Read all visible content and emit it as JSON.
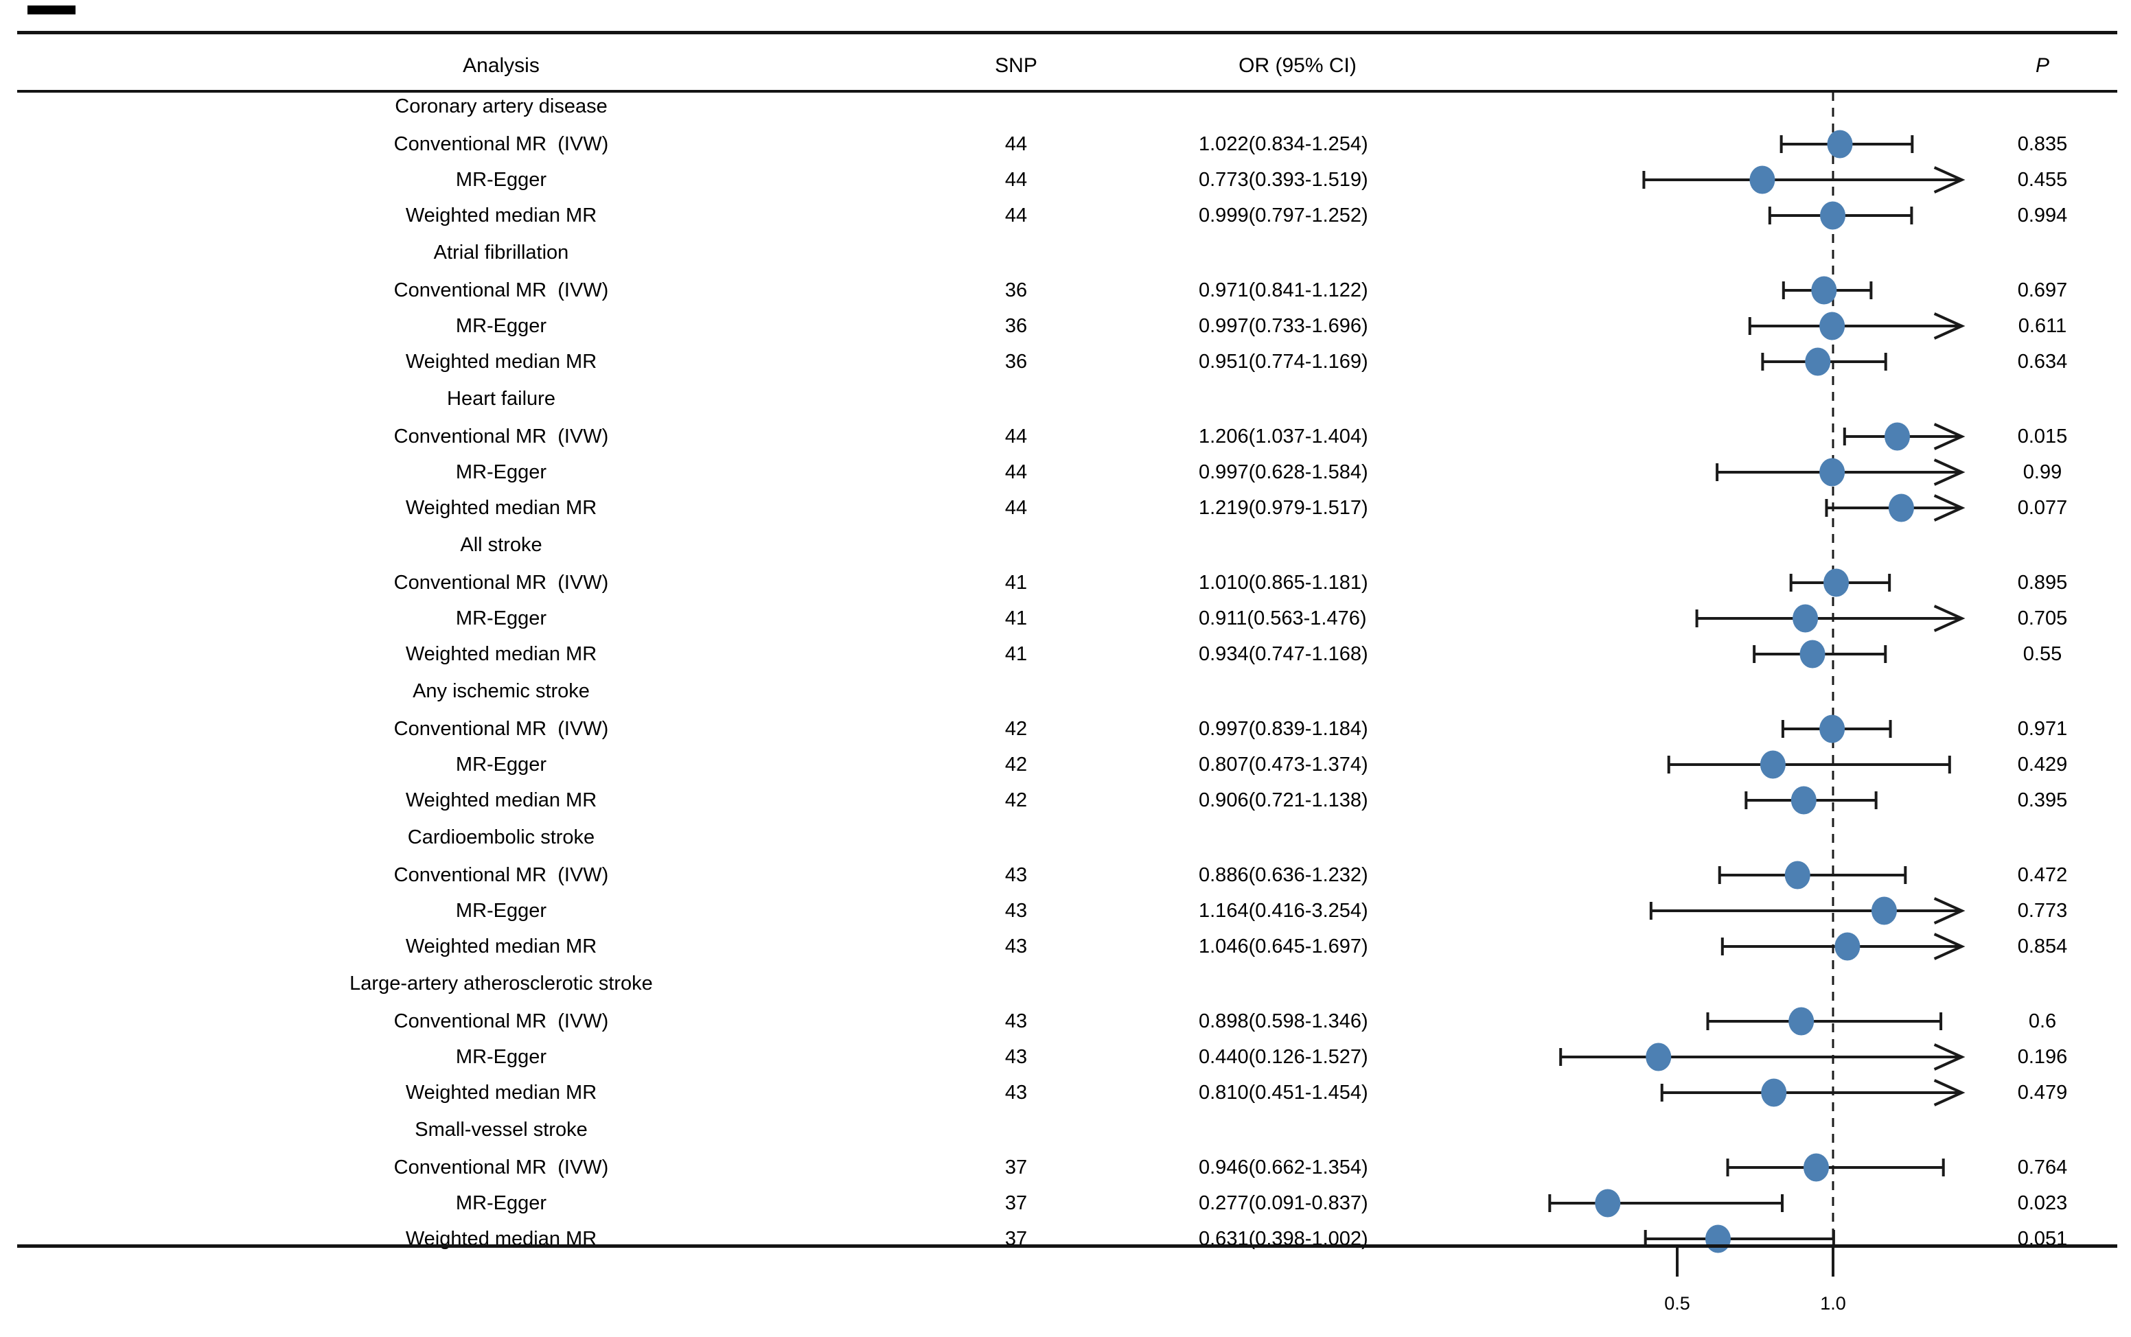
{
  "header": {
    "analysis": "Analysis",
    "snp": "SNP",
    "or": "OR (95% CI)",
    "p": "P"
  },
  "colors": {
    "marker": "#4d80b3",
    "line": "#1a1a1a"
  },
  "chart_data": {
    "type": "forest",
    "x_axis": {
      "ticks": [
        {
          "value": 0.5,
          "label": "0.5"
        },
        {
          "value": 1.0,
          "label": "1.0"
        }
      ],
      "reference_line": 1.0,
      "clip_upper": 1.4,
      "scale": "linear"
    },
    "legend": "none",
    "groups": [
      {
        "label": "Coronary artery disease",
        "rows": [
          {
            "analysis": "Conventional MR  (IVW)",
            "snp": "44",
            "or_ci": "1.022(0.834-1.254)",
            "or": 1.022,
            "lo": 0.834,
            "hi": 1.254,
            "p": "0.835"
          },
          {
            "analysis": "MR-Egger",
            "snp": "44",
            "or_ci": "0.773(0.393-1.519)",
            "or": 0.773,
            "lo": 0.393,
            "hi": 1.519,
            "p": "0.455"
          },
          {
            "analysis": "Weighted median MR",
            "snp": "44",
            "or_ci": "0.999(0.797-1.252)",
            "or": 0.999,
            "lo": 0.797,
            "hi": 1.252,
            "p": "0.994"
          }
        ]
      },
      {
        "label": "Atrial fibrillation",
        "rows": [
          {
            "analysis": "Conventional MR  (IVW)",
            "snp": "36",
            "or_ci": "0.971(0.841-1.122)",
            "or": 0.971,
            "lo": 0.841,
            "hi": 1.122,
            "p": "0.697"
          },
          {
            "analysis": "MR-Egger",
            "snp": "36",
            "or_ci": "0.997(0.733-1.696)",
            "or": 0.997,
            "lo": 0.733,
            "hi": 1.696,
            "p": "0.611"
          },
          {
            "analysis": "Weighted median MR",
            "snp": "36",
            "or_ci": "0.951(0.774-1.169)",
            "or": 0.951,
            "lo": 0.774,
            "hi": 1.169,
            "p": "0.634"
          }
        ]
      },
      {
        "label": "Heart failure",
        "rows": [
          {
            "analysis": "Conventional MR  (IVW)",
            "snp": "44",
            "or_ci": "1.206(1.037-1.404)",
            "or": 1.206,
            "lo": 1.037,
            "hi": 1.404,
            "p": "0.015"
          },
          {
            "analysis": "MR-Egger",
            "snp": "44",
            "or_ci": "0.997(0.628-1.584)",
            "or": 0.997,
            "lo": 0.628,
            "hi": 1.584,
            "p": "0.99"
          },
          {
            "analysis": "Weighted median MR",
            "snp": "44",
            "or_ci": "1.219(0.979-1.517)",
            "or": 1.219,
            "lo": 0.979,
            "hi": 1.517,
            "p": "0.077"
          }
        ]
      },
      {
        "label": "All stroke",
        "rows": [
          {
            "analysis": "Conventional MR  (IVW)",
            "snp": "41",
            "or_ci": "1.010(0.865-1.181)",
            "or": 1.01,
            "lo": 0.865,
            "hi": 1.181,
            "p": "0.895"
          },
          {
            "analysis": "MR-Egger",
            "snp": "41",
            "or_ci": "0.911(0.563-1.476)",
            "or": 0.911,
            "lo": 0.563,
            "hi": 1.476,
            "p": "0.705"
          },
          {
            "analysis": "Weighted median MR",
            "snp": "41",
            "or_ci": "0.934(0.747-1.168)",
            "or": 0.934,
            "lo": 0.747,
            "hi": 1.168,
            "p": "0.55"
          }
        ]
      },
      {
        "label": "Any ischemic stroke",
        "rows": [
          {
            "analysis": "Conventional MR  (IVW)",
            "snp": "42",
            "or_ci": "0.997(0.839-1.184)",
            "or": 0.997,
            "lo": 0.839,
            "hi": 1.184,
            "p": "0.971"
          },
          {
            "analysis": "MR-Egger",
            "snp": "42",
            "or_ci": "0.807(0.473-1.374)",
            "or": 0.807,
            "lo": 0.473,
            "hi": 1.374,
            "p": "0.429"
          },
          {
            "analysis": "Weighted median MR",
            "snp": "42",
            "or_ci": "0.906(0.721-1.138)",
            "or": 0.906,
            "lo": 0.721,
            "hi": 1.138,
            "p": "0.395"
          }
        ]
      },
      {
        "label": "Cardioembolic stroke",
        "rows": [
          {
            "analysis": "Conventional MR  (IVW)",
            "snp": "43",
            "or_ci": "0.886(0.636-1.232)",
            "or": 0.886,
            "lo": 0.636,
            "hi": 1.232,
            "p": "0.472"
          },
          {
            "analysis": "MR-Egger",
            "snp": "43",
            "or_ci": "1.164(0.416-3.254)",
            "or": 1.164,
            "lo": 0.416,
            "hi": 3.254,
            "p": "0.773"
          },
          {
            "analysis": "Weighted median MR",
            "snp": "43",
            "or_ci": "1.046(0.645-1.697)",
            "or": 1.046,
            "lo": 0.645,
            "hi": 1.697,
            "p": "0.854"
          }
        ]
      },
      {
        "label": "Large-artery atherosclerotic stroke",
        "rows": [
          {
            "analysis": "Conventional MR  (IVW)",
            "snp": "43",
            "or_ci": "0.898(0.598-1.346)",
            "or": 0.898,
            "lo": 0.598,
            "hi": 1.346,
            "p": "0.6"
          },
          {
            "analysis": "MR-Egger",
            "snp": "43",
            "or_ci": "0.440(0.126-1.527)",
            "or": 0.44,
            "lo": 0.126,
            "hi": 1.527,
            "p": "0.196"
          },
          {
            "analysis": "Weighted median MR",
            "snp": "43",
            "or_ci": "0.810(0.451-1.454)",
            "or": 0.81,
            "lo": 0.451,
            "hi": 1.454,
            "p": "0.479"
          }
        ]
      },
      {
        "label": "Small-vessel stroke",
        "rows": [
          {
            "analysis": "Conventional MR  (IVW)",
            "snp": "37",
            "or_ci": "0.946(0.662-1.354)",
            "or": 0.946,
            "lo": 0.662,
            "hi": 1.354,
            "p": "0.764"
          },
          {
            "analysis": "MR-Egger",
            "snp": "37",
            "or_ci": "0.277(0.091-0.837)",
            "or": 0.277,
            "lo": 0.091,
            "hi": 0.837,
            "p": "0.023"
          },
          {
            "analysis": "Weighted median MR",
            "snp": "37",
            "or_ci": "0.631(0.398-1.002)",
            "or": 0.631,
            "lo": 0.398,
            "hi": 1.002,
            "p": "0.051"
          }
        ]
      }
    ]
  }
}
